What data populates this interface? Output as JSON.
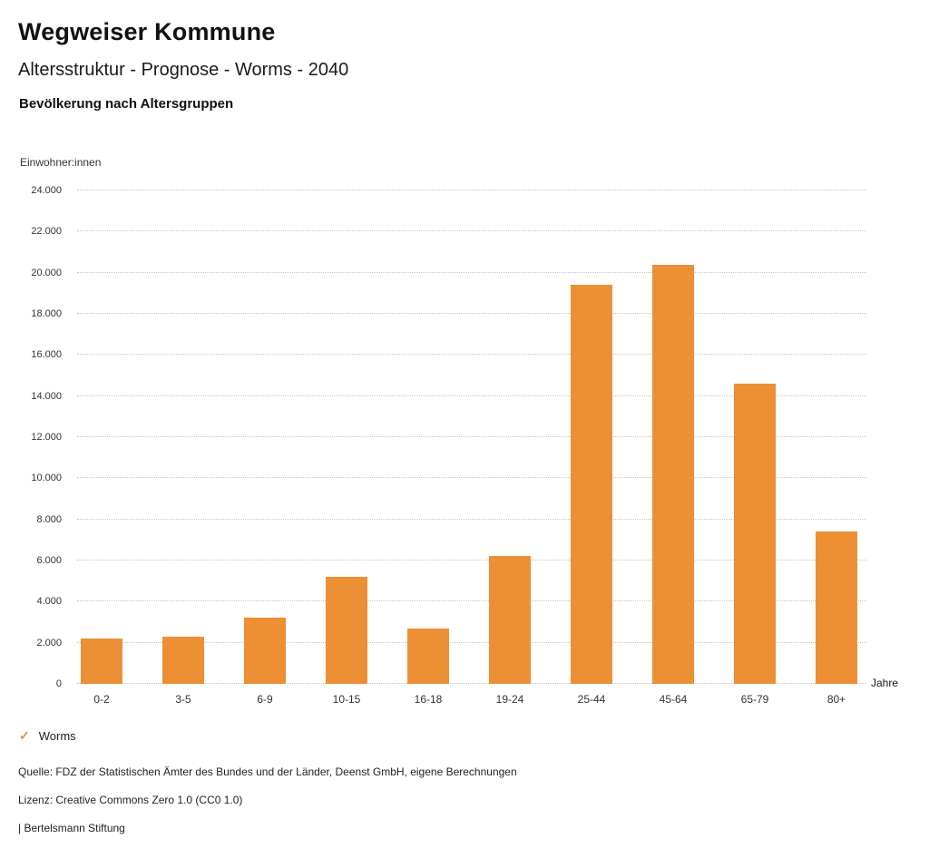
{
  "header": {
    "title": "Wegweiser Kommune",
    "subtitle": "Altersstruktur - Prognose - Worms - 2040",
    "section": "Bevölkerung nach Altersgruppen"
  },
  "chart_data": {
    "type": "bar",
    "title": "Bevölkerung nach Altersgruppen",
    "categories": [
      "0-2",
      "3-5",
      "6-9",
      "10-15",
      "16-18",
      "19-24",
      "25-44",
      "45-64",
      "65-79",
      "80+"
    ],
    "series": [
      {
        "name": "Worms",
        "values": [
          2200,
          2300,
          3200,
          5200,
          2700,
          6200,
          19400,
          20400,
          14600,
          7400
        ]
      }
    ],
    "ylabel": "Einwohner:innen",
    "xlabel": "Jahre",
    "ylim": [
      0,
      24000
    ],
    "ytick_step": 2000,
    "ytick_labels": [
      "0",
      "2.000",
      "4.000",
      "6.000",
      "8.000",
      "10.000",
      "12.000",
      "14.000",
      "16.000",
      "18.000",
      "20.000",
      "22.000",
      "24.000"
    ],
    "grid": "horizontal-dotted",
    "legend_position": "bottom-left",
    "bar_color": "#EC8F35"
  },
  "legend": {
    "check_glyph": "✓",
    "label": "Worms",
    "color": "#EC8F35"
  },
  "footer": {
    "source": "Quelle: FDZ der Statistischen Ämter des Bundes und der Länder, Deenst GmbH, eigene Berechnungen",
    "license": "Lizenz: Creative Commons Zero 1.0 (CC0 1.0)",
    "attribution": "| Bertelsmann Stiftung"
  }
}
